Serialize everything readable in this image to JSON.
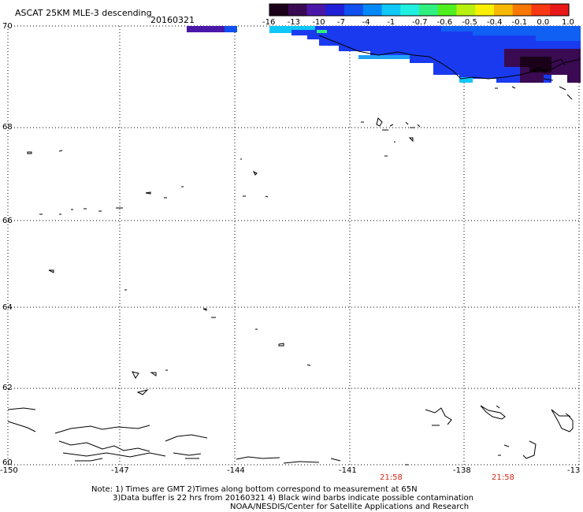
{
  "header": {
    "title": "ASCAT 25KM MLE-3 descending",
    "date": "20160321"
  },
  "colorbar": {
    "colors": [
      "#1a0018",
      "#3a0a52",
      "#4a18a8",
      "#2020d8",
      "#1050f0",
      "#0088f8",
      "#10c8f8",
      "#20f0e0",
      "#30f080",
      "#50f020",
      "#b8f010",
      "#f8f000",
      "#f8b800",
      "#f87800",
      "#f83810",
      "#e81818"
    ],
    "tick_labels": [
      "-16",
      "-13",
      "-10",
      "-7",
      "-4",
      "-1",
      "-0.7",
      "-0.6",
      "-0.5",
      "-0.4",
      "-0.1",
      "0.0",
      "1.0"
    ]
  },
  "map": {
    "lat_labels": [
      "70",
      "68",
      "66",
      "64",
      "62",
      "60"
    ],
    "lon_labels": [
      "-150",
      "-147",
      "-144",
      "-141",
      "-138",
      "-13"
    ],
    "pass_times": [
      "21:58",
      "21:58"
    ]
  },
  "notes": {
    "line1": "Note: 1) Times are GMT 2)Times along bottom correspond to measurement at 65N",
    "line2": "3)Data buffer is 22 hrs from 20160321 4) Black wind barbs indicate possible contamination",
    "line3": "NOAA/NESDIS/Center for Satellite Applications and Research"
  }
}
